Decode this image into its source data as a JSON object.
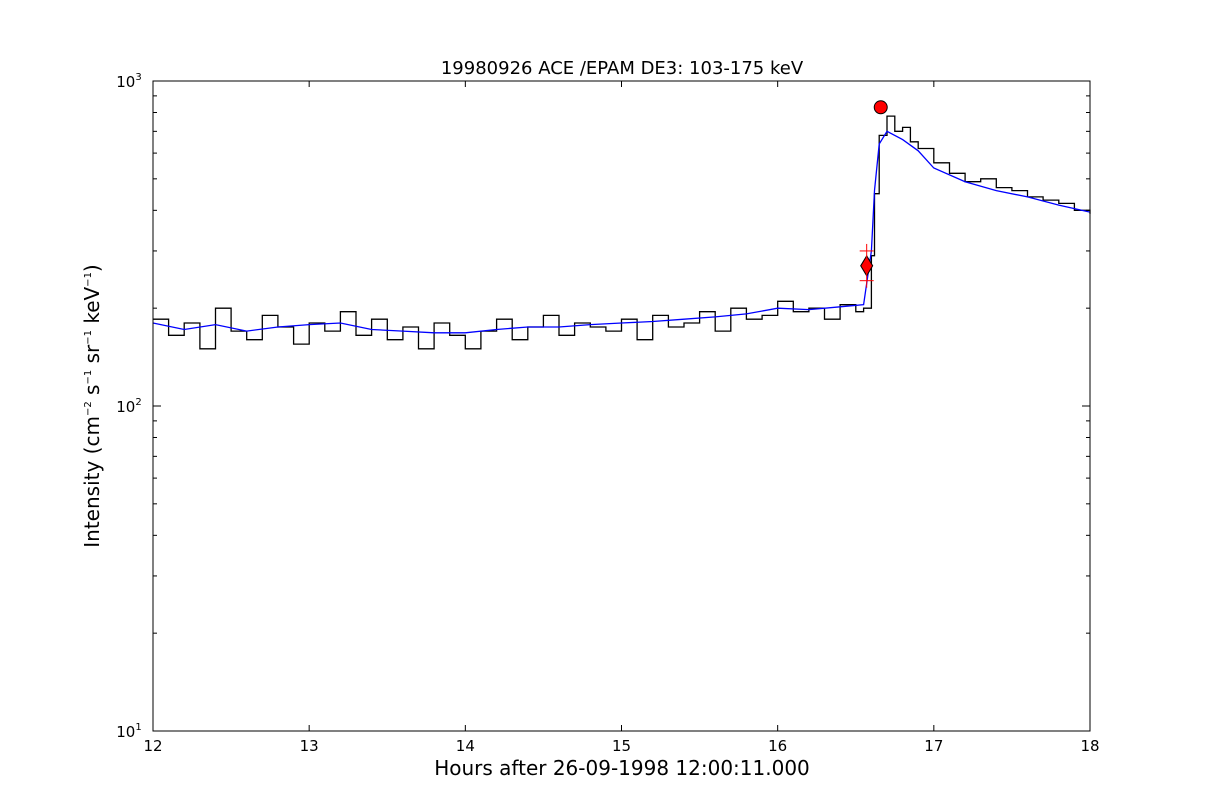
{
  "chart_data": {
    "type": "line",
    "title": "19980926 ACE /EPAM DE3: 103-175 keV",
    "xlabel": "Hours after 26-09-1998 12:00:11.000",
    "ylabel_parts": [
      "Intensity (cm",
      "−2",
      " s",
      "−1",
      " sr",
      "−1",
      " keV",
      "−1",
      ")"
    ],
    "x_scale": "linear",
    "y_scale": "log",
    "xlim": [
      12,
      18
    ],
    "ylim": [
      10,
      1000
    ],
    "x_ticks": [
      "12",
      "13",
      "14",
      "15",
      "16",
      "17",
      "18"
    ],
    "y_ticks": [
      {
        "value": 10,
        "base": "10",
        "exp": "1"
      },
      {
        "value": 100,
        "base": "10",
        "exp": "2"
      },
      {
        "value": 1000,
        "base": "10",
        "exp": "3"
      }
    ],
    "grid": false,
    "colors": {
      "raw": "#000000",
      "smoothed": "#0000ff",
      "marker": "#ff0000"
    },
    "series": [
      {
        "role": "raw",
        "x": [
          12.0,
          12.1,
          12.2,
          12.3,
          12.4,
          12.5,
          12.6,
          12.7,
          12.8,
          12.9,
          13.0,
          13.1,
          13.2,
          13.3,
          13.4,
          13.5,
          13.6,
          13.7,
          13.8,
          13.9,
          14.0,
          14.1,
          14.2,
          14.3,
          14.4,
          14.5,
          14.6,
          14.7,
          14.8,
          14.9,
          15.0,
          15.1,
          15.2,
          15.3,
          15.4,
          15.5,
          15.6,
          15.7,
          15.8,
          15.9,
          16.0,
          16.1,
          16.2,
          16.3,
          16.4,
          16.5,
          16.55,
          16.6,
          16.62,
          16.65,
          16.7,
          16.75,
          16.8,
          16.85,
          16.9,
          17.0,
          17.1,
          17.2,
          17.3,
          17.4,
          17.5,
          17.6,
          17.7,
          17.8,
          17.9,
          18.0
        ],
        "y": [
          185,
          165,
          180,
          150,
          200,
          170,
          160,
          190,
          175,
          155,
          180,
          170,
          195,
          165,
          185,
          160,
          175,
          150,
          180,
          165,
          150,
          170,
          185,
          160,
          175,
          190,
          165,
          180,
          175,
          170,
          185,
          160,
          190,
          175,
          180,
          195,
          170,
          200,
          185,
          190,
          210,
          195,
          200,
          185,
          205,
          195,
          200,
          290,
          450,
          680,
          780,
          700,
          720,
          650,
          620,
          560,
          520,
          490,
          500,
          470,
          460,
          440,
          430,
          420,
          400,
          390
        ]
      },
      {
        "role": "smoothed",
        "x": [
          12.0,
          12.2,
          12.4,
          12.6,
          12.8,
          13.0,
          13.2,
          13.4,
          13.6,
          13.8,
          14.0,
          14.2,
          14.4,
          14.6,
          14.8,
          15.0,
          15.2,
          15.4,
          15.6,
          15.8,
          16.0,
          16.2,
          16.4,
          16.55,
          16.6,
          16.62,
          16.65,
          16.7,
          16.8,
          16.9,
          17.0,
          17.2,
          17.4,
          17.6,
          17.8,
          18.0
        ],
        "y": [
          180,
          172,
          178,
          170,
          175,
          178,
          180,
          172,
          170,
          168,
          168,
          172,
          175,
          175,
          178,
          180,
          182,
          185,
          188,
          192,
          200,
          198,
          202,
          205,
          300,
          460,
          640,
          700,
          660,
          610,
          540,
          490,
          460,
          440,
          415,
          395
        ]
      }
    ],
    "markers": [
      {
        "shape": "circle",
        "x": 16.66,
        "y": 830
      },
      {
        "shape": "diamond",
        "x": 16.57,
        "y": 270
      },
      {
        "shape": "plus",
        "x": 16.57,
        "y": 300
      },
      {
        "shape": "plus",
        "x": 16.57,
        "y": 243
      }
    ]
  }
}
